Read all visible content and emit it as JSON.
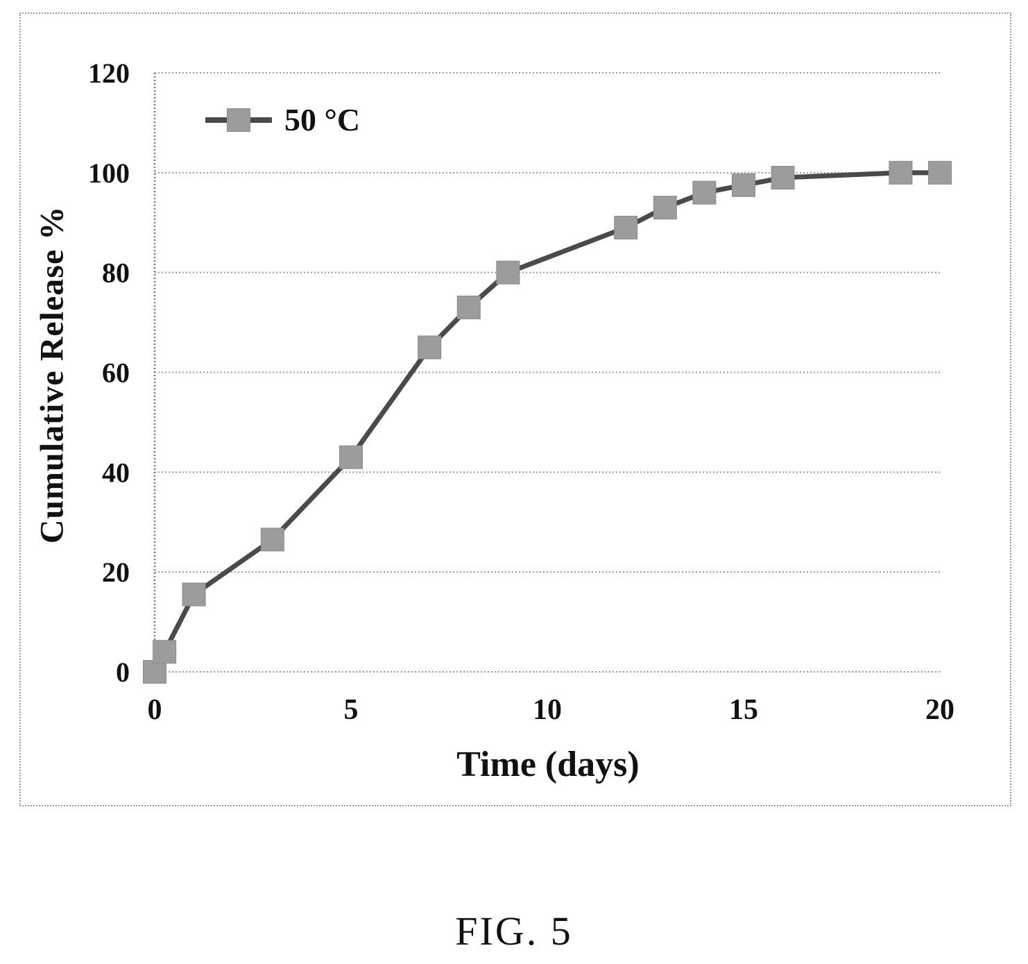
{
  "figure": {
    "caption": "FIG. 5"
  },
  "chart_data": {
    "type": "line",
    "title": "",
    "xlabel": "Time (days)",
    "ylabel": "Cumulative Release %",
    "xlim": [
      0,
      20
    ],
    "ylim": [
      0,
      120
    ],
    "xticks": [
      0,
      5,
      10,
      15,
      20
    ],
    "yticks": [
      0,
      20,
      40,
      60,
      80,
      100,
      120
    ],
    "grid": "horizontal-dotted",
    "legend_position": "top-left-inside",
    "series": [
      {
        "name": "50 °C",
        "marker": "square",
        "x": [
          0,
          0.25,
          1,
          3,
          5,
          7,
          8,
          9,
          12,
          13,
          14,
          15,
          16,
          19,
          20
        ],
        "y": [
          0,
          4,
          15.5,
          26.5,
          43,
          65,
          73,
          80,
          89,
          93,
          96,
          97.5,
          99,
          100,
          100
        ]
      }
    ],
    "colors": {
      "marker_fill": "#9c9c9c",
      "marker_edge": "#8a8a8a",
      "line": "#4a4a4a",
      "gridline": "#999999",
      "axis": "#777777",
      "text": "#111111",
      "border": "#9a9a9a"
    }
  }
}
